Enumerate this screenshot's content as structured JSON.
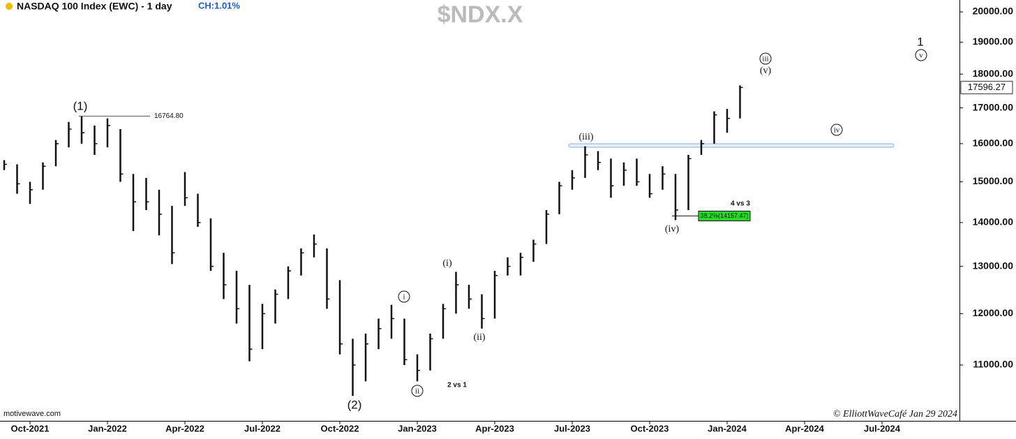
{
  "chart_data": {
    "type": "ohlc",
    "title": "NASDAQ 100 Index (EWC) - 1 day",
    "change": "CH:1.01%",
    "symbol": "$NDX.X",
    "source": "motivewave.com",
    "copyright": "© ElliottWaveCafé Jan 29 2024",
    "log_scale": true,
    "color": "#111111",
    "categories": [
      null,
      null,
      "Oct-2021",
      null,
      null,
      null,
      null,
      null,
      "Jan-2022",
      null,
      null,
      null,
      null,
      null,
      "Apr-2022",
      null,
      null,
      null,
      null,
      null,
      "Jul-2022",
      null,
      null,
      null,
      null,
      null,
      "Oct-2022",
      null,
      null,
      null,
      null,
      null,
      "Jan-2023",
      null,
      null,
      null,
      null,
      null,
      "Apr-2023",
      null,
      null,
      null,
      null,
      null,
      "Jul-2023",
      null,
      null,
      null,
      null,
      null,
      "Oct-2023",
      null,
      null,
      null,
      null,
      null,
      "Jan-2024",
      null,
      null,
      null,
      null,
      null,
      "Apr-2024",
      null,
      null,
      null,
      null,
      null,
      "Jul-2024",
      null,
      null,
      null,
      null,
      null
    ],
    "high": [
      15560,
      15450,
      15000,
      15500,
      16100,
      16600,
      16764.8,
      16500,
      16700,
      16400,
      15200,
      15100,
      14800,
      14400,
      15250,
      14700,
      14100,
      13300,
      12900,
      12600,
      12200,
      12500,
      13000,
      13400,
      13720,
      13400,
      12700,
      11500,
      11600,
      11900,
      12180,
      11900,
      11200,
      11600,
      12200,
      12880,
      12600,
      12400,
      12900,
      13200,
      13300,
      13600,
      14300,
      15000,
      15300,
      15930,
      15800,
      15600,
      15500,
      15600,
      15200,
      15400,
      15200,
      15700,
      16100,
      16900,
      16970,
      17660,
      null,
      null,
      null,
      null,
      null,
      null,
      null,
      null,
      null,
      null,
      null,
      null,
      null,
      null,
      null,
      null
    ],
    "low": [
      15300,
      14700,
      14450,
      14800,
      15400,
      15900,
      16000,
      15700,
      15900,
      15000,
      13800,
      14300,
      13700,
      13050,
      14400,
      13900,
      12900,
      12300,
      11800,
      11070,
      11300,
      11800,
      12300,
      12800,
      13200,
      12100,
      11200,
      10440,
      10700,
      11300,
      11500,
      11000,
      10700,
      10900,
      11500,
      12000,
      12100,
      11700,
      11900,
      12800,
      12800,
      13100,
      13500,
      14200,
      14800,
      15100,
      15300,
      14600,
      14900,
      14900,
      14600,
      14800,
      14060,
      14300,
      15700,
      16000,
      16300,
      16700,
      null,
      null,
      null,
      null,
      null,
      null,
      null,
      null,
      null,
      null,
      null,
      null,
      null,
      null,
      null,
      null
    ],
    "close": [
      15450,
      14950,
      14800,
      15400,
      16000,
      16400,
      16300,
      16000,
      16500,
      15200,
      14500,
      14500,
      14200,
      13300,
      14600,
      14000,
      13000,
      12600,
      12100,
      11300,
      12000,
      12400,
      12900,
      13300,
      13500,
      12300,
      11400,
      11000,
      11400,
      11700,
      11900,
      11100,
      10900,
      11500,
      12100,
      12600,
      12300,
      11900,
      12800,
      13000,
      13200,
      13500,
      14200,
      14900,
      15100,
      15700,
      15500,
      14900,
      15300,
      15000,
      14700,
      15200,
      14300,
      15600,
      16000,
      16800,
      16700,
      17596.27,
      null,
      null,
      null,
      null,
      null,
      null,
      null,
      null,
      null,
      null,
      null,
      null,
      null,
      null,
      null,
      null
    ],
    "ylim": [
      10008,
      20406
    ],
    "yticks": [
      {
        "value": 11000,
        "label": "11000.00"
      },
      {
        "value": 12000,
        "label": "12000.00"
      },
      {
        "value": 13000,
        "label": "13000.00"
      },
      {
        "value": 14000,
        "label": "14000.00"
      },
      {
        "value": 15000,
        "label": "15000.00"
      },
      {
        "value": 16000,
        "label": "16000.00"
      },
      {
        "value": 17000,
        "label": "17000.00"
      },
      {
        "value": 18000,
        "label": "18000.00"
      },
      {
        "value": 19000,
        "label": "19000.00"
      },
      {
        "value": 20000,
        "label": "20000.00"
      }
    ],
    "levels": [
      {
        "value": 16764.8,
        "label": "16764.80"
      },
      {
        "value": 14157.47,
        "label": "38.2%(14157.47)"
      }
    ],
    "zone": 15950,
    "wave_labels": [
      {
        "text": "(1)",
        "circled": false
      },
      {
        "text": "(2)",
        "circled": false
      },
      {
        "text": "i",
        "circled": true
      },
      {
        "text": "ii",
        "circled": true
      },
      {
        "text": "(i)",
        "circled": false
      },
      {
        "text": "(ii)",
        "circled": false
      },
      {
        "text": "(iii)",
        "circled": false
      },
      {
        "text": "(iv)",
        "circled": false
      },
      {
        "text": "iii",
        "circled": true
      },
      {
        "text": "(v)",
        "circled": false
      },
      {
        "text": "iv",
        "circled": true
      },
      {
        "text": "1",
        "circled": false
      },
      {
        "text": "v",
        "circled": true
      }
    ],
    "notes": [
      "2 vs 1",
      "4 vs 3"
    ]
  }
}
